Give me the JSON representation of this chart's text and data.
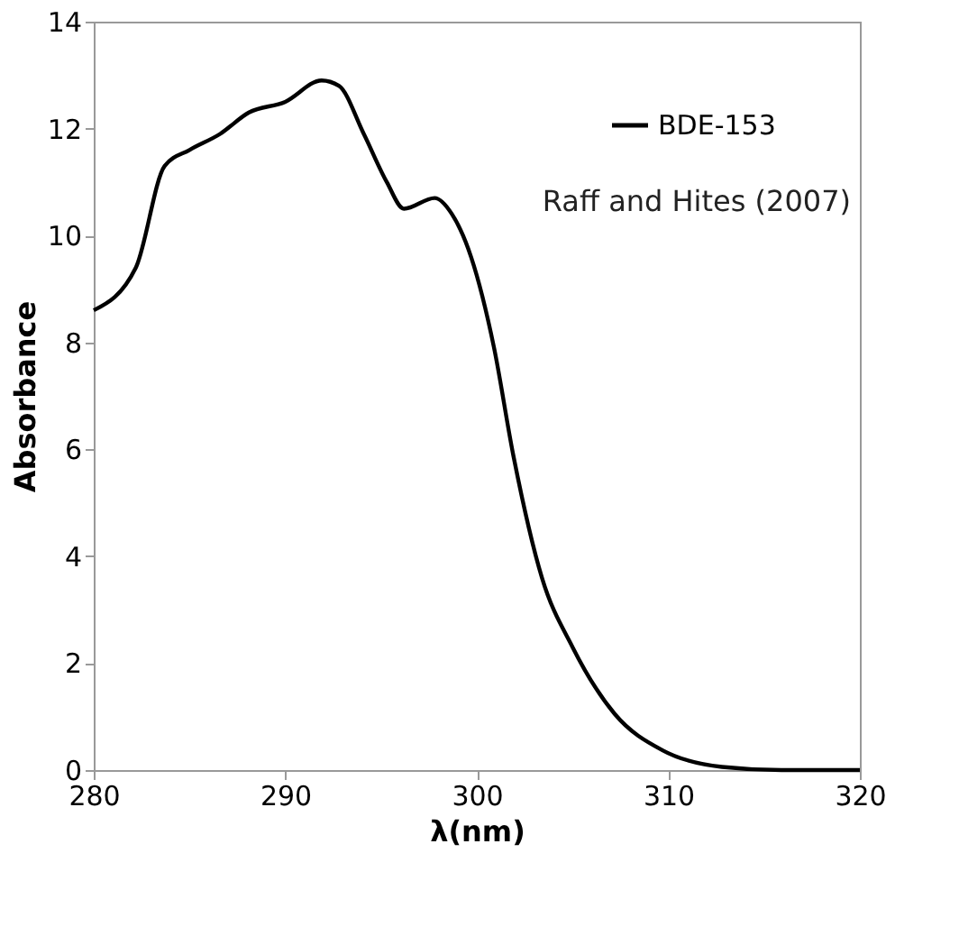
{
  "chart_data": {
    "type": "line",
    "xlabel": "λ(nm)",
    "ylabel": "Absorbance",
    "annotations": [
      "Raff and Hites (2007)"
    ],
    "series": [
      {
        "name": "BDE-153",
        "color": "#000000",
        "x": [
          280,
          282.2,
          283.7,
          285.0,
          286.6,
          288.1,
          290.0,
          291.9,
          292.8,
          294.1,
          295.3,
          296.2,
          297.8,
          298.7,
          299.7,
          300.9,
          301.9,
          303.4,
          305.0,
          307.2,
          309.7,
          312.8,
          315.9,
          320
        ],
        "values": [
          8.6,
          9.4,
          11.3,
          11.6,
          11.9,
          12.3,
          12.5,
          12.9,
          12.8,
          11.9,
          11.0,
          10.5,
          10.7,
          10.4,
          9.6,
          7.9,
          5.9,
          3.6,
          2.3,
          1.05,
          0.37,
          0.06,
          0.0,
          0.0
        ]
      }
    ],
    "xlim": [
      280,
      320
    ],
    "xticks": [
      280,
      290,
      300,
      310,
      320
    ],
    "ylim": [
      0,
      14
    ],
    "yticks": [
      0,
      2,
      4,
      6,
      8,
      10,
      12,
      14
    ],
    "grid": false,
    "legend": "top right",
    "marker": "none",
    "line_style": "solid"
  }
}
